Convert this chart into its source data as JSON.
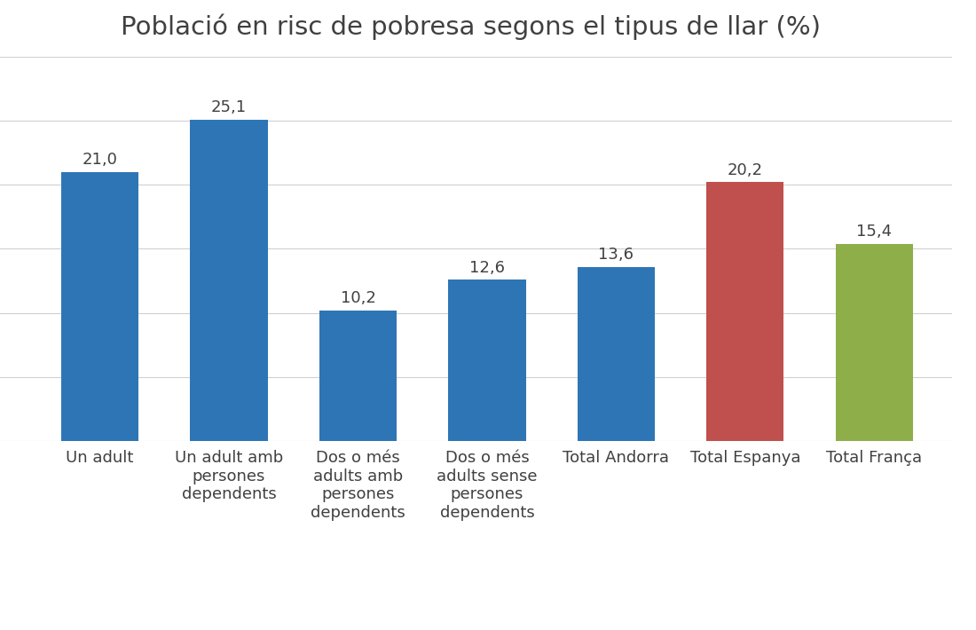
{
  "categories": [
    "Un adult",
    "Un adult amb\npersones\ndependents",
    "Dos o més\nadults amb\npersones\ndependents",
    "Dos o més\nadults sense\npersones\ndependents",
    "Total Andorra",
    "Total Espanya",
    "Total França"
  ],
  "values": [
    21.0,
    25.1,
    10.2,
    12.6,
    13.6,
    20.2,
    15.4
  ],
  "bar_colors": [
    "#2E75B6",
    "#2E75B6",
    "#2E75B6",
    "#2E75B6",
    "#2E75B6",
    "#C0504D",
    "#8DAE48"
  ],
  "labels": [
    "21,0",
    "25,1",
    "10,2",
    "12,6",
    "13,6",
    "20,2",
    "15,4"
  ],
  "title": "Població en risc de pobresa segons el tipus de llar (%)",
  "title_fontsize": 21,
  "label_fontsize": 13,
  "tick_fontsize": 13,
  "ylim": [
    0,
    30
  ],
  "background_color": "#FFFFFF",
  "grid_color": "#D0D0D0"
}
